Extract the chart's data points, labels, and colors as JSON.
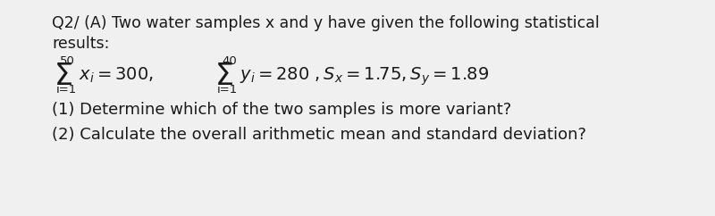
{
  "bg_color": "#f0f0f0",
  "text_color": "#1a1a1a",
  "line1": "Q2/ (A) Two water samples x and y have given the following statistical",
  "line2": "results:",
  "sum_upper_x": "50",
  "sum_lower_x": "i=1",
  "sum_upper_y": "40",
  "sum_lower_y": "i=1",
  "line4": "(1) Determine which of the two samples is more variant?",
  "line5": "(2) Calculate the overall arithmetic mean and standard deviation?",
  "font_size_header": 12.5,
  "font_size_body": 13.0,
  "font_size_math": 14.0,
  "font_size_sigma": 20,
  "font_size_small": 9.5
}
